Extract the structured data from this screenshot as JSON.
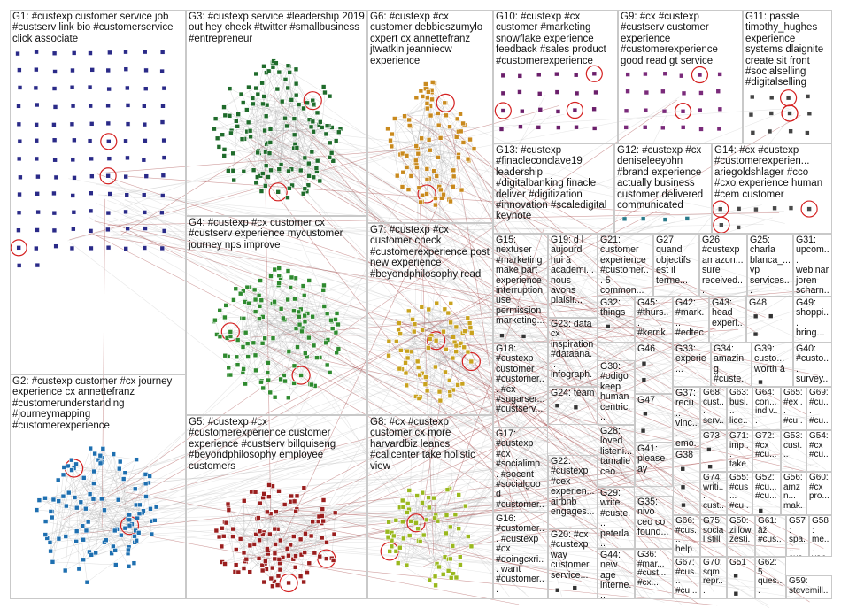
{
  "colors": {
    "edge": "#9a2a2a",
    "border": "#c9c9c9",
    "self_loop": "#d42020"
  },
  "groups": [
    {
      "id": "G1",
      "label": "G1: #custexp customer service job #custserv link bio #customerservice click associate",
      "node_color": "#2a2a88"
    },
    {
      "id": "G3",
      "label": "G3: #custexp service #leadership 2019 out hey check #twitter #smallbusiness #entrepreneur",
      "node_color": "#1f6b2b"
    },
    {
      "id": "G6",
      "label": "G6: #custexp #cx customer debbieszumylo cxpert cx annettefranz jtwatkin jeanniecw experience",
      "node_color": "#c98a1e"
    },
    {
      "id": "G10",
      "label": "G10: #custexp #cx customer #marketing snowflake experience feedback #sales product #customerexperience",
      "node_color": "#6b1f6b"
    },
    {
      "id": "G9",
      "label": "G9: #cx #custexp #custserv customer experience #customerexperience good read gt service",
      "node_color": "#7a2a7a"
    },
    {
      "id": "G11",
      "label": "G11: passle timothy_hughes experience systems dlaignite create sit front #socialselling #digitalselling",
      "node_color": "#444444"
    },
    {
      "id": "G4",
      "label": "G4: #custexp #cx customer cx #custserv experience mycustomer journey nps improve",
      "node_color": "#2f8a2f"
    },
    {
      "id": "G13",
      "label": "G13: #custexp #finacleconclave19 leadership #digitalbanking finacle deliver #digitization #innovation #scaledigital keynote",
      "node_color": "#2a6a8a"
    },
    {
      "id": "G12",
      "label": "G12: #custexp #cx deniseleeyohn #brand experience actually business customer delivered communicated",
      "node_color": "#2a7a8a"
    },
    {
      "id": "G14",
      "label": "G14: #cx #custexp #customerexperien... ariegoldshlager #cco #cxo experience human #cem customer",
      "node_color": "#4a4a4a"
    },
    {
      "id": "G7",
      "label": "G7: #custexp #cx customer check #customerexperience post new experience #beyondphilosophy read",
      "node_color": "#c9a21e"
    },
    {
      "id": "G15",
      "label": "G15: nextuser #marketing make part experience interruption use permission marketing...",
      "node_color": "#333333"
    },
    {
      "id": "G19",
      "label": "G19: d l aujourd hui à academi... nous avons plaisir...",
      "node_color": "#333333"
    },
    {
      "id": "G21",
      "label": "G21: customer experience #customer... 5 common...",
      "node_color": "#333333"
    },
    {
      "id": "G27",
      "label": "G27: quand objectifs est il terme...",
      "node_color": "#333333"
    },
    {
      "id": "G26",
      "label": "G26: #custexp amazon... sure received...",
      "node_color": "#333333"
    },
    {
      "id": "G25",
      "label": "G25: charla blanca_... vp services...",
      "node_color": "#333333"
    },
    {
      "id": "G31",
      "label": "G31: upcom... webinar joren scharn...",
      "node_color": "#333333"
    },
    {
      "id": "G2",
      "label": "G2: #custexp customer #cx journey experience cx annettefranz #customerunderstanding #journeymapping #customerexperience",
      "node_color": "#1e6fb0"
    },
    {
      "id": "G23",
      "label": "G23: data cx inspiration #dataana... infograph... #datasci... ceo...",
      "node_color": "#333333"
    },
    {
      "id": "G32",
      "label": "G32: things",
      "node_color": "#333333"
    },
    {
      "id": "G45",
      "label": "G45: #thurs... #kerrik...",
      "node_color": "#333333"
    },
    {
      "id": "G42",
      "label": "G42: #mark... #edtec...",
      "node_color": "#333333"
    },
    {
      "id": "G43",
      "label": "G43: head experi...",
      "node_color": "#333333"
    },
    {
      "id": "G48",
      "label": "G48",
      "node_color": "#333333"
    },
    {
      "id": "G49",
      "label": "G49: shoppi... bring...",
      "node_color": "#333333"
    },
    {
      "id": "G18",
      "label": "G18: #custexp customer #customer... #cx #sugarser... #custserv...",
      "node_color": "#333333"
    },
    {
      "id": "G24",
      "label": "G24: team",
      "node_color": "#333333"
    },
    {
      "id": "G30",
      "label": "G30: #odigo keep human centric...",
      "node_color": "#333333"
    },
    {
      "id": "G46",
      "label": "G46",
      "node_color": "#333333"
    },
    {
      "id": "G33",
      "label": "G33: experie...",
      "node_color": "#333333"
    },
    {
      "id": "G34",
      "label": "G34: amazing #custe...",
      "node_color": "#333333"
    },
    {
      "id": "G39",
      "label": "G39: custo... worth â",
      "node_color": "#333333"
    },
    {
      "id": "G40",
      "label": "G40: #custo... survey...",
      "node_color": "#333333"
    },
    {
      "id": "G47",
      "label": "G47",
      "node_color": "#333333"
    },
    {
      "id": "G37",
      "label": "G37: recu... vinc... emo... com...",
      "node_color": "#333333"
    },
    {
      "id": "G68",
      "label": "G68: cust... serv...",
      "node_color": "#333333"
    },
    {
      "id": "G63",
      "label": "G63: busi... lice...",
      "node_color": "#333333"
    },
    {
      "id": "G64",
      "label": "G64: con... indiv...",
      "node_color": "#333333"
    },
    {
      "id": "G65",
      "label": "G65: #ex... #cu...",
      "node_color": "#333333"
    },
    {
      "id": "G69",
      "label": "G69: #cu... #cu...",
      "node_color": "#333333"
    },
    {
      "id": "G5",
      "label": "G5: #custexp #cx #customerexperience customer experience #custserv billquiseng #beyondphilosophy employee customers",
      "node_color": "#9a1e1e"
    },
    {
      "id": "G8",
      "label": "G8: #cx #custexp customer cx more harvardbiz leancs #callcenter take holistic view",
      "node_color": "#9ab81e"
    },
    {
      "id": "G17",
      "label": "G17: #custexp #cx #socialimp... #socent #socialgood #customer...",
      "node_color": "#333333"
    },
    {
      "id": "G28",
      "label": "G28: loved listeni... tamalie ceo...",
      "node_color": "#333333"
    },
    {
      "id": "G41",
      "label": "G41: please ay",
      "node_color": "#333333"
    },
    {
      "id": "G73",
      "label": "G73",
      "node_color": "#333333"
    },
    {
      "id": "G71",
      "label": "G71: imp... take...",
      "node_color": "#333333"
    },
    {
      "id": "G72",
      "label": "G72: #cx #cu...",
      "node_color": "#333333"
    },
    {
      "id": "G53",
      "label": "G53: cust...",
      "node_color": "#333333"
    },
    {
      "id": "G54",
      "label": "G54: #cx #cu...",
      "node_color": "#333333"
    },
    {
      "id": "G38",
      "label": "G38",
      "node_color": "#333333"
    },
    {
      "id": "G74",
      "label": "G74: writi... cust...",
      "node_color": "#333333"
    },
    {
      "id": "G55",
      "label": "G55: #cus... #cu...",
      "node_color": "#333333"
    },
    {
      "id": "G52",
      "label": "G52: #cu... #cu...",
      "node_color": "#333333"
    },
    {
      "id": "G56",
      "label": "G56: amzn... mak...",
      "node_color": "#333333"
    },
    {
      "id": "G60",
      "label": "G60: #cx pro...",
      "node_color": "#333333"
    },
    {
      "id": "G22",
      "label": "G22: #custexp #cex experien... airbnb engages...",
      "node_color": "#333333"
    },
    {
      "id": "G29",
      "label": "G29: write #custe... peterla... lawyer...",
      "node_color": "#333333"
    },
    {
      "id": "G35",
      "label": "G35: nivo ceo co found...",
      "node_color": "#333333"
    },
    {
      "id": "G66",
      "label": "G66: #cus... help...",
      "node_color": "#333333"
    },
    {
      "id": "G75",
      "label": "G75: social still",
      "node_color": "#333333"
    },
    {
      "id": "G50",
      "label": "G50: zillow zesti...",
      "node_color": "#333333"
    },
    {
      "id": "G61",
      "label": "G61: âž #cus...",
      "node_color": "#333333"
    },
    {
      "id": "G57",
      "label": "G57: spa... cus... 64...",
      "node_color": "#333333"
    },
    {
      "id": "G58",
      "label": "G58: me... van #cu...",
      "node_color": "#333333"
    },
    {
      "id": "G16",
      "label": "G16: #customer... #custexp #cx #doingcxri... want #customer...",
      "node_color": "#333333"
    },
    {
      "id": "G20",
      "label": "G20: #cx #custexp way customer service...",
      "node_color": "#333333"
    },
    {
      "id": "G44",
      "label": "G44: new age interne...",
      "node_color": "#333333"
    },
    {
      "id": "G36",
      "label": "G36: #mar... #cust... #cx...",
      "node_color": "#333333"
    },
    {
      "id": "G67",
      "label": "G67: #cus... #cu...",
      "node_color": "#333333"
    },
    {
      "id": "G70",
      "label": "G70: sqm repr...",
      "node_color": "#333333"
    },
    {
      "id": "G51",
      "label": "G51",
      "node_color": "#333333"
    },
    {
      "id": "G62",
      "label": "G62: 5 ques...",
      "node_color": "#333333"
    },
    {
      "id": "G59",
      "label": "G59: stevemill...",
      "node_color": "#333333"
    }
  ]
}
